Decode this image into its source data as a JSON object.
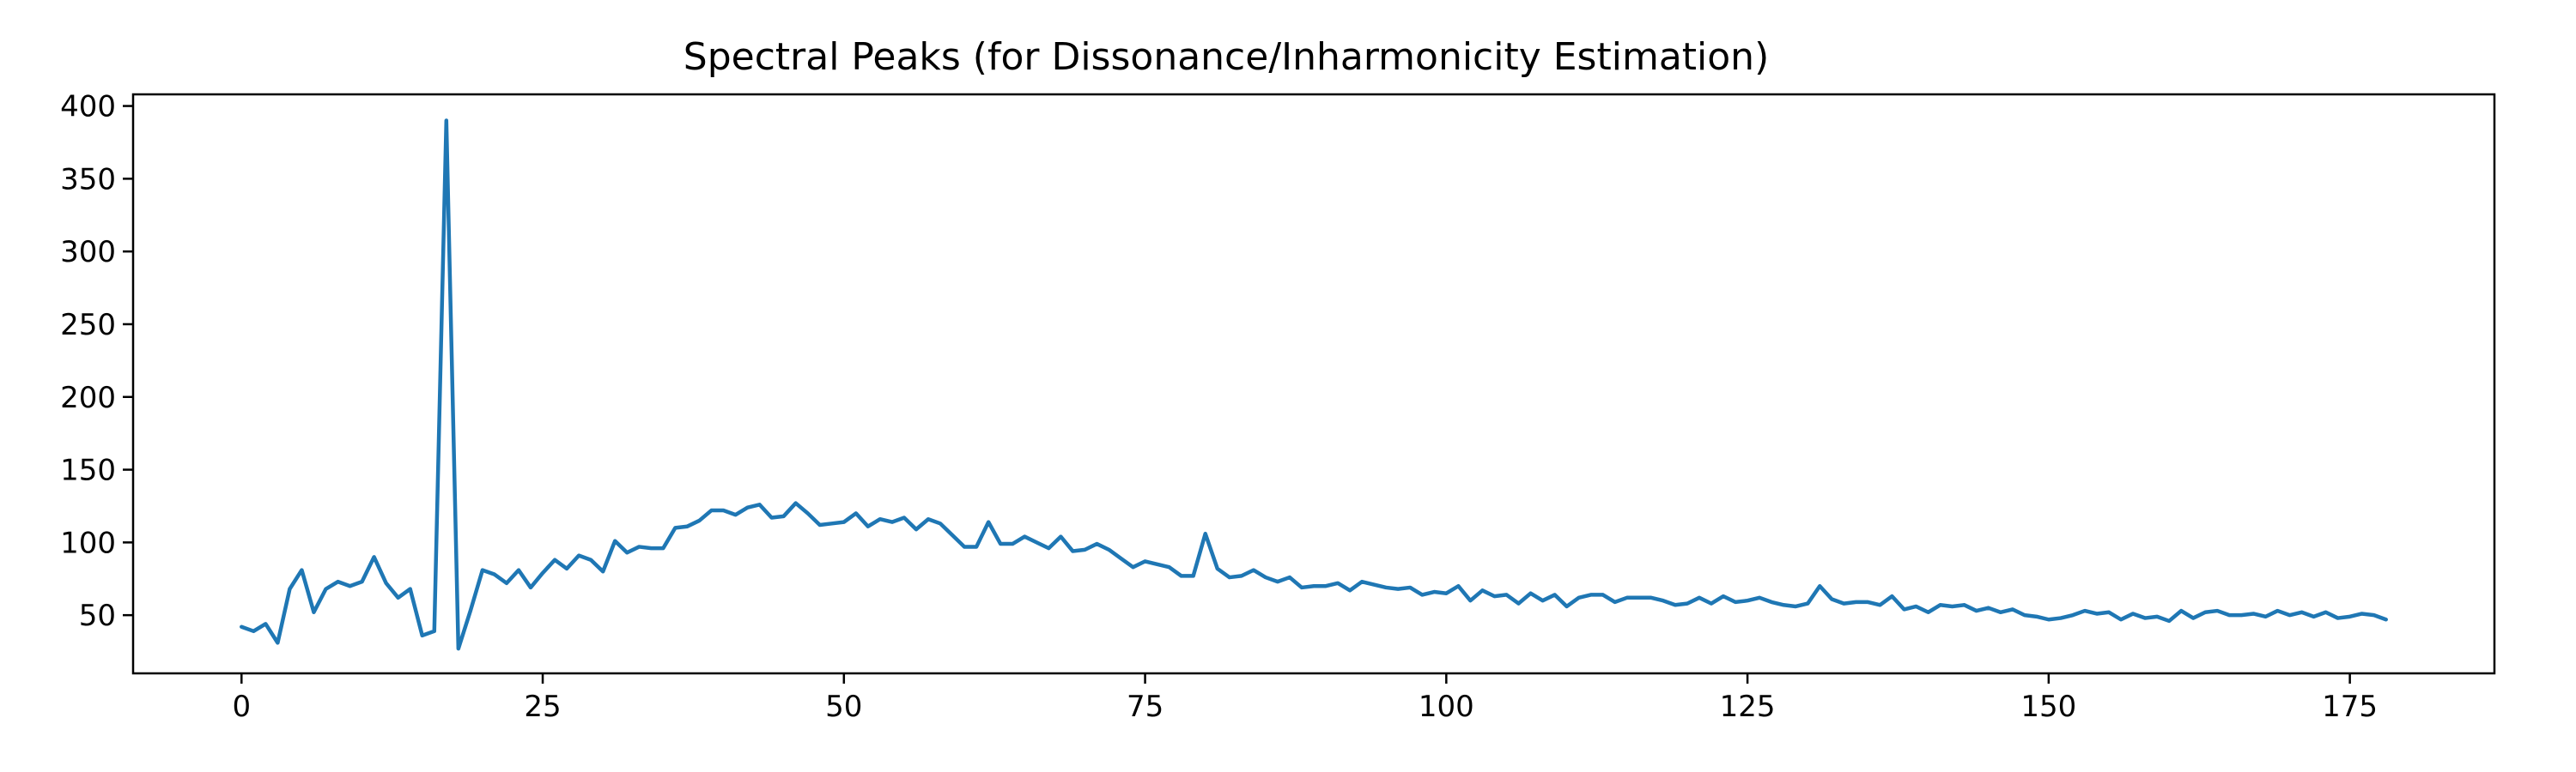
{
  "chart_data": {
    "type": "line",
    "title": "Spectral Peaks (for Dissonance/Inharmonicity Estimation)",
    "xlabel": "",
    "ylabel": "",
    "xlim": [
      -9,
      187
    ],
    "ylim": [
      10,
      408
    ],
    "xticks": [
      0,
      25,
      50,
      75,
      100,
      125,
      150,
      175
    ],
    "yticks": [
      50,
      100,
      150,
      200,
      250,
      300,
      350,
      400
    ],
    "grid": false,
    "legend": "none",
    "series": [
      {
        "color": "#1f77b4",
        "x_start": 0,
        "values": [
          42,
          39,
          44,
          31,
          68,
          81,
          52,
          68,
          73,
          70,
          73,
          90,
          72,
          62,
          68,
          36,
          39,
          390,
          27,
          53,
          81,
          78,
          72,
          81,
          69,
          79,
          88,
          82,
          91,
          88,
          80,
          101,
          93,
          97,
          96,
          96,
          110,
          111,
          115,
          122,
          122,
          119,
          124,
          126,
          117,
          118,
          127,
          120,
          112,
          113,
          114,
          120,
          111,
          116,
          114,
          117,
          109,
          116,
          113,
          105,
          97,
          97,
          114,
          99,
          99,
          104,
          100,
          96,
          104,
          94,
          95,
          99,
          95,
          89,
          83,
          87,
          85,
          83,
          77,
          77,
          106,
          82,
          76,
          77,
          81,
          76,
          73,
          76,
          69,
          70,
          70,
          72,
          67,
          73,
          71,
          69,
          68,
          69,
          64,
          66,
          65,
          70,
          60,
          67,
          63,
          64,
          58,
          65,
          60,
          64,
          56,
          62,
          64,
          64,
          59,
          62,
          62,
          62,
          60,
          57,
          58,
          62,
          58,
          63,
          59,
          60,
          62,
          59,
          57,
          56,
          58,
          70,
          61,
          58,
          59,
          59,
          57,
          63,
          54,
          56,
          52,
          57,
          56,
          57,
          53,
          55,
          52,
          54,
          50,
          49,
          47,
          48,
          50,
          53,
          51,
          52,
          47,
          51,
          48,
          49,
          46,
          53,
          48,
          52,
          53,
          50,
          50,
          51,
          49,
          53,
          50,
          52,
          49,
          52,
          48,
          49,
          51,
          50,
          47
        ]
      }
    ]
  }
}
